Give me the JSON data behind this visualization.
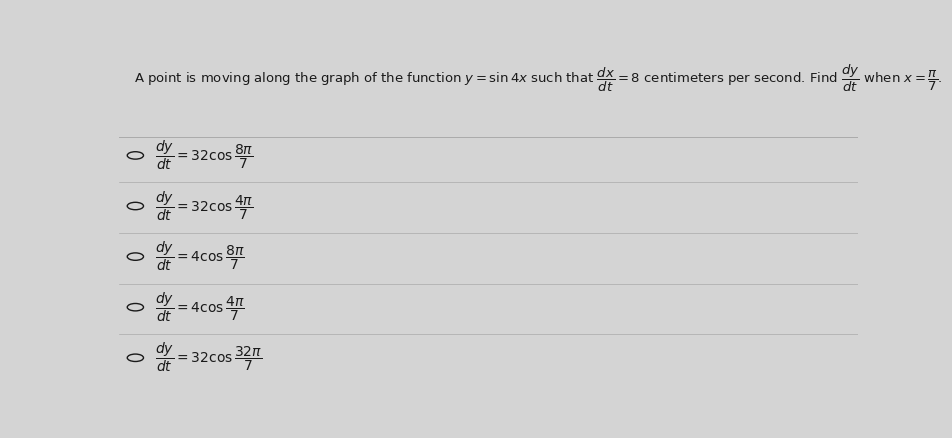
{
  "background_color": "#d4d4d4",
  "question_parts": [
    "A point is moving along the graph of the function $y = \\sin4x$ such that $\\dfrac{dx}{dt} = 8$ centimeters per second. Find $\\dfrac{dy}{dt}$ when $x = \\dfrac{\\pi}{7}$."
  ],
  "choices": [
    "$\\dfrac{dy}{dt} = 32\\cos\\dfrac{8\\pi}{7}$",
    "$\\dfrac{dy}{dt} = 32\\cos\\dfrac{4\\pi}{7}$",
    "$\\dfrac{dy}{dt} = 4\\cos\\dfrac{8\\pi}{7}$",
    "$\\dfrac{dy}{dt} = 4\\cos\\dfrac{4\\pi}{7}$",
    "$\\dfrac{dy}{dt} = 32\\cos\\dfrac{32\\pi}{7}$"
  ],
  "text_color": "#1a1a1a",
  "circle_color": "#1a1a1a",
  "divider_color": "#aaaaaa",
  "question_fontsize": 9.5,
  "choice_fontsize": 10,
  "fig_width": 9.53,
  "fig_height": 4.38
}
